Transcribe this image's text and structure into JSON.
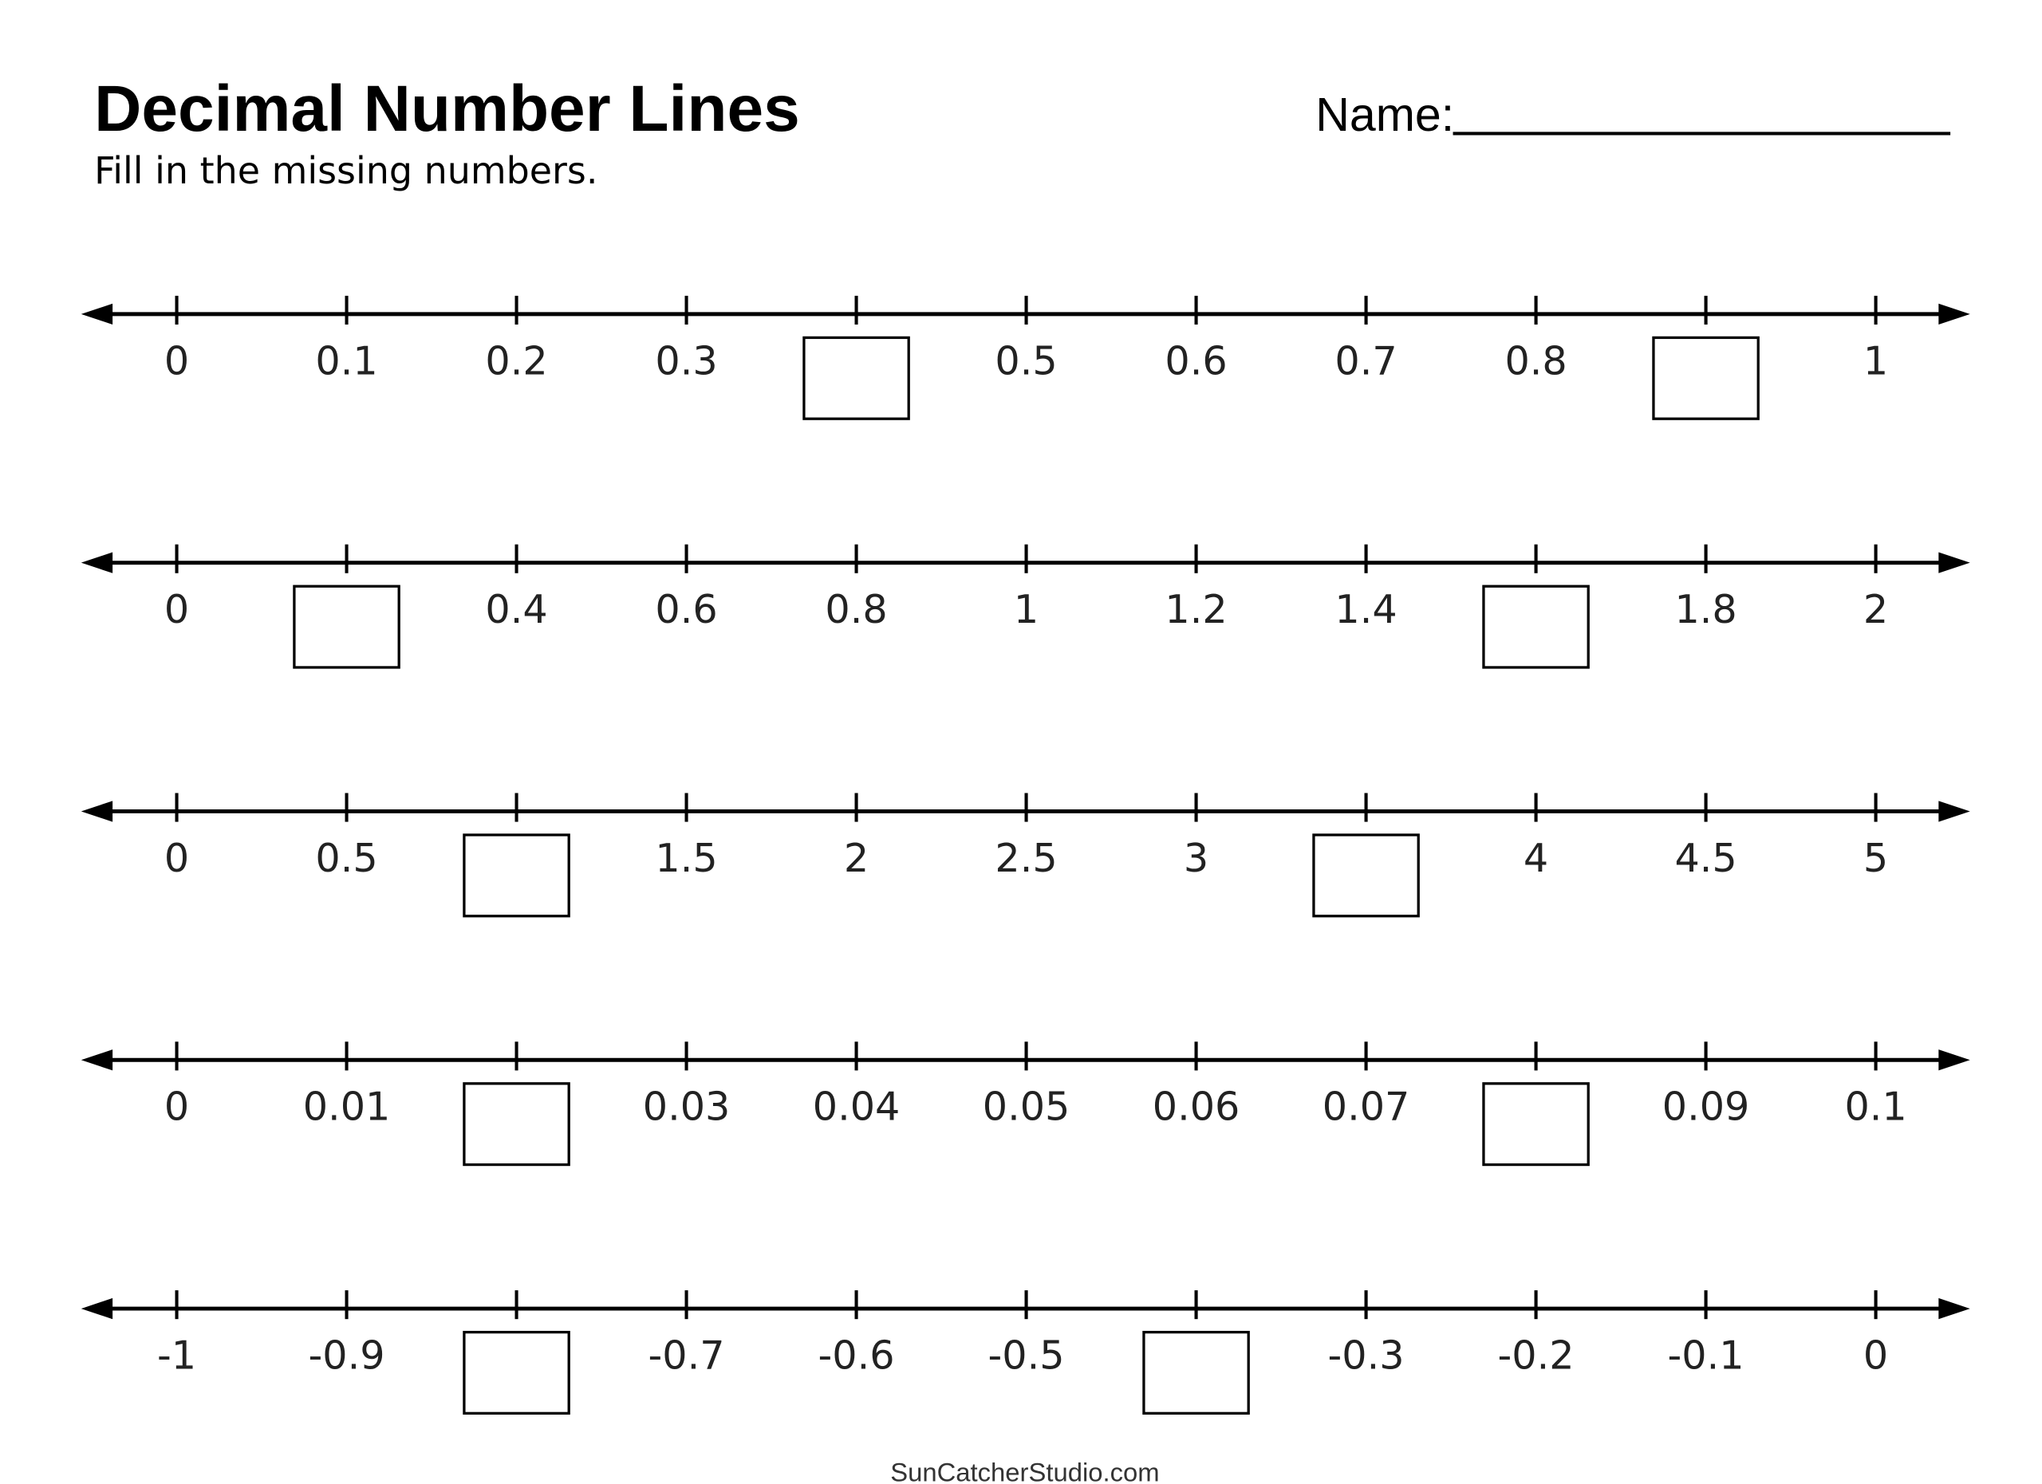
{
  "header": {
    "title": "Decimal Number Lines",
    "subtitle": "Fill in the missing numbers.",
    "name_label": "Name:"
  },
  "lines": [
    {
      "labels": [
        "0",
        "0.1",
        "0.2",
        "0.3",
        null,
        "0.5",
        "0.6",
        "0.7",
        "0.8",
        null,
        "1"
      ]
    },
    {
      "labels": [
        "0",
        null,
        "0.4",
        "0.6",
        "0.8",
        "1",
        "1.2",
        "1.4",
        null,
        "1.8",
        "2"
      ]
    },
    {
      "labels": [
        "0",
        "0.5",
        null,
        "1.5",
        "2",
        "2.5",
        "3",
        null,
        "4",
        "4.5",
        "5"
      ]
    },
    {
      "labels": [
        "0",
        "0.01",
        null,
        "0.03",
        "0.04",
        "0.05",
        "0.06",
        "0.07",
        null,
        "0.09",
        "0.1"
      ]
    },
    {
      "labels": [
        "-1",
        "-0.9",
        null,
        "-0.7",
        "-0.6",
        "-0.5",
        null,
        "-0.3",
        "-0.2",
        "-0.1",
        "0"
      ]
    }
  ],
  "footer": "SunCatcherStudio.com"
}
